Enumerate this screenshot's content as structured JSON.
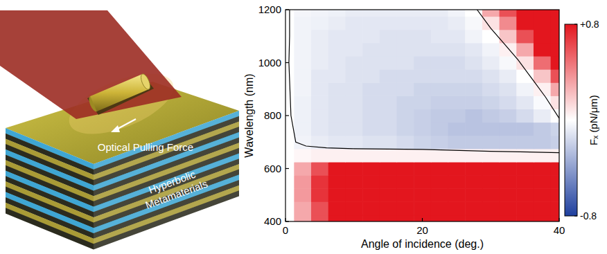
{
  "chart_data": {
    "type": "heatmap",
    "x_label": "Angle of incidence (deg.)",
    "y_label": "Wavelength (nm)",
    "xlim": [
      0,
      40
    ],
    "ylim": [
      400,
      1200
    ],
    "xticks": [
      0,
      20,
      40
    ],
    "yticks": [
      400,
      600,
      800,
      1000,
      1200
    ],
    "x": [
      0,
      2.5,
      5,
      7.5,
      10,
      12.5,
      15,
      17.5,
      20,
      22.5,
      25,
      27.5,
      30,
      32.5,
      35,
      37.5,
      40
    ],
    "y": [
      400,
      450,
      500,
      550,
      600,
      650,
      700,
      750,
      800,
      850,
      900,
      950,
      1000,
      1050,
      1100,
      1150,
      1200
    ],
    "values": [
      [
        0,
        0.3,
        0.6,
        0.8,
        0.9,
        1.0,
        1.0,
        1.0,
        1.0,
        1.0,
        1.0,
        1.0,
        1.0,
        1.0,
        1.0,
        1.0,
        1.0
      ],
      [
        0,
        0.3,
        0.6,
        0.85,
        1.0,
        1.1,
        1.1,
        1.1,
        1.1,
        1.1,
        1.1,
        1.1,
        1.1,
        1.1,
        1.1,
        1.1,
        1.1
      ],
      [
        0,
        0.35,
        0.7,
        0.9,
        1.1,
        1.2,
        1.2,
        1.2,
        1.2,
        1.2,
        1.2,
        1.2,
        1.2,
        1.2,
        1.2,
        1.2,
        1.2
      ],
      [
        0,
        0.35,
        0.7,
        0.95,
        1.1,
        1.2,
        1.2,
        1.2,
        1.2,
        1.2,
        1.2,
        1.2,
        1.2,
        1.2,
        1.2,
        1.2,
        1.2
      ],
      [
        0,
        0.3,
        0.6,
        0.8,
        0.9,
        1.0,
        1.0,
        1.0,
        1.0,
        1.0,
        1.0,
        1.0,
        1.0,
        1.0,
        1.0,
        1.0,
        1.0
      ],
      [
        0,
        0.03,
        0.05,
        0.05,
        0.05,
        0.05,
        0.05,
        0.05,
        0.05,
        0.05,
        0.05,
        0.05,
        0.05,
        0.05,
        0.05,
        0.05,
        0.05
      ],
      [
        0,
        -0.05,
        -0.08,
        -0.1,
        -0.1,
        -0.12,
        -0.12,
        -0.15,
        -0.18,
        -0.2,
        -0.22,
        -0.22,
        -0.22,
        -0.22,
        -0.22,
        -0.22,
        -0.2
      ],
      [
        0,
        -0.06,
        -0.1,
        -0.12,
        -0.12,
        -0.15,
        -0.15,
        -0.18,
        -0.2,
        -0.22,
        -0.25,
        -0.25,
        -0.25,
        -0.25,
        -0.25,
        -0.22,
        -0.18
      ],
      [
        0,
        -0.06,
        -0.1,
        -0.12,
        -0.12,
        -0.15,
        -0.15,
        -0.18,
        -0.2,
        -0.22,
        -0.22,
        -0.25,
        -0.22,
        -0.2,
        -0.15,
        -0.08,
        0.0
      ],
      [
        0,
        -0.06,
        -0.1,
        -0.12,
        -0.12,
        -0.15,
        -0.15,
        -0.18,
        -0.18,
        -0.2,
        -0.2,
        -0.2,
        -0.18,
        -0.15,
        -0.1,
        -0.02,
        0.1
      ],
      [
        0,
        -0.05,
        -0.1,
        -0.12,
        -0.12,
        -0.15,
        -0.15,
        -0.15,
        -0.18,
        -0.18,
        -0.18,
        -0.18,
        -0.15,
        -0.12,
        -0.05,
        0.05,
        0.3
      ],
      [
        0,
        -0.05,
        -0.1,
        -0.1,
        -0.12,
        -0.12,
        -0.15,
        -0.15,
        -0.15,
        -0.15,
        -0.15,
        -0.15,
        -0.12,
        -0.08,
        0.0,
        0.2,
        0.6
      ],
      [
        0,
        -0.05,
        -0.08,
        -0.1,
        -0.12,
        -0.12,
        -0.12,
        -0.12,
        -0.15,
        -0.15,
        -0.15,
        -0.12,
        -0.08,
        -0.03,
        0.1,
        0.5,
        0.9
      ],
      [
        0,
        -0.05,
        -0.08,
        -0.1,
        -0.1,
        -0.12,
        -0.12,
        -0.12,
        -0.12,
        -0.12,
        -0.12,
        -0.1,
        -0.05,
        0.05,
        0.3,
        0.8,
        1.0
      ],
      [
        0,
        -0.05,
        -0.08,
        -0.1,
        -0.1,
        -0.1,
        -0.12,
        -0.12,
        -0.12,
        -0.1,
        -0.1,
        -0.05,
        0.0,
        0.2,
        0.6,
        1.0,
        1.0
      ],
      [
        0,
        -0.05,
        -0.06,
        -0.08,
        -0.1,
        -0.1,
        -0.1,
        -0.1,
        -0.1,
        -0.1,
        -0.08,
        -0.03,
        0.1,
        0.4,
        0.9,
        1.0,
        0.9
      ],
      [
        0,
        -0.04,
        -0.05,
        -0.06,
        -0.08,
        -0.08,
        -0.08,
        -0.08,
        -0.08,
        -0.08,
        -0.05,
        0.0,
        0.3,
        0.6,
        1.0,
        1.0,
        0.8
      ]
    ],
    "colors": [
      "#1e3f9e",
      "#ffffff",
      "#e3161e"
    ],
    "colorbar": {
      "label": "Fₓ (pN/μm)",
      "lim": [
        -0.8,
        0.8
      ],
      "ticks": [
        {
          "value": 0.8,
          "label": "+0.8"
        },
        {
          "value": -0.8,
          "label": "-0.8"
        }
      ]
    },
    "contours": [
      {
        "x": [
          0.6,
          0.6,
          0.5,
          0.8,
          1.5,
          3,
          6,
          10,
          20,
          30,
          40
        ],
        "y": [
          1200,
          1100,
          1000,
          800,
          700,
          685,
          678,
          675,
          672,
          665,
          660
        ]
      },
      {
        "x": [
          28,
          30,
          32,
          34,
          36,
          38,
          40
        ],
        "y": [
          1200,
          1130,
          1070,
          1010,
          940,
          870,
          790
        ]
      }
    ]
  },
  "illustration": {
    "force_label": "Optical Pulling Force",
    "material_label": "Hyperbolic Metamaterials"
  }
}
